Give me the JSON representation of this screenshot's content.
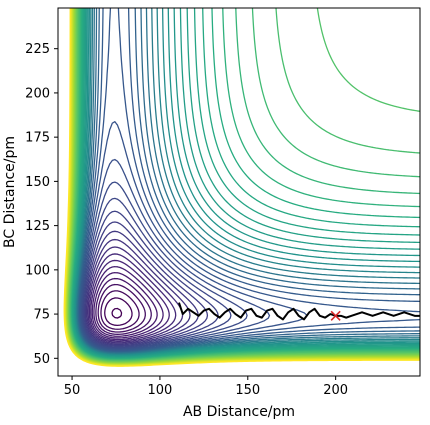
{
  "chart_data": {
    "type": "contour",
    "xlabel": "AB Distance/pm",
    "ylabel": "BC Distance/pm",
    "xlim": [
      42,
      248
    ],
    "ylim": [
      40,
      248
    ],
    "xticks": [
      50,
      100,
      150,
      200
    ],
    "yticks": [
      50,
      75,
      100,
      125,
      150,
      175,
      200,
      225
    ],
    "colormap": "viridis",
    "grid": false,
    "series": [
      {
        "type": "trajectory",
        "color": "#000000",
        "x": [
          111,
          113,
          116,
          119,
          122,
          125,
          128,
          131,
          134,
          137,
          140,
          143,
          146,
          149,
          152,
          155,
          158,
          161,
          164,
          167,
          170,
          173,
          176,
          179,
          182,
          185,
          188,
          191,
          194,
          197,
          200,
          203,
          206,
          209,
          212,
          215,
          218,
          221,
          224,
          227,
          230,
          233,
          236,
          239,
          242,
          245,
          248
        ],
        "y": [
          81,
          75,
          78,
          76,
          74,
          77,
          78,
          75,
          73,
          76,
          78,
          75,
          73,
          77,
          78,
          74,
          73,
          77,
          78,
          74,
          72,
          76,
          78,
          74,
          72,
          76,
          78,
          74,
          73,
          75,
          74,
          74,
          73,
          74,
          75,
          76,
          75,
          74,
          75,
          76,
          75,
          74,
          75,
          76,
          75,
          74,
          74
        ]
      },
      {
        "type": "marker",
        "symbol": "x",
        "color": "#d62728",
        "x": 200,
        "y": 74
      }
    ]
  }
}
